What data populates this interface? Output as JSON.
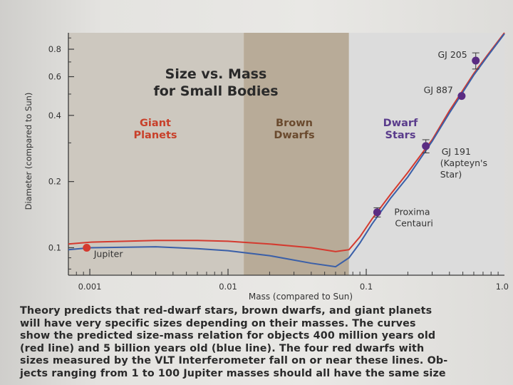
{
  "chart_data": {
    "type": "line",
    "title_lines": [
      "Size vs. Mass",
      "for Small Bodies"
    ],
    "xlabel": "Mass (compared to Sun)",
    "ylabel": "Diameter (compared to Sun)",
    "x_scale": "log",
    "y_scale": "log",
    "xlim": [
      0.0007,
      1.0
    ],
    "ylim": [
      0.075,
      0.95
    ],
    "x_ticks": [
      {
        "value": 0.001,
        "label": "0.001"
      },
      {
        "value": 0.01,
        "label": "0.01"
      },
      {
        "value": 0.1,
        "label": "0.1"
      },
      {
        "value": 1.0,
        "label": "1.0"
      }
    ],
    "y_ticks": [
      {
        "value": 0.1,
        "label": "0.1"
      },
      {
        "value": 0.2,
        "label": "0.2"
      },
      {
        "value": 0.4,
        "label": "0.4"
      },
      {
        "value": 0.6,
        "label": "0.6"
      },
      {
        "value": 0.8,
        "label": "0.8"
      }
    ],
    "regions": [
      {
        "name": "Giant Planets",
        "label_lines": [
          "Giant",
          "Planets"
        ],
        "x_range": [
          0.0007,
          0.013
        ],
        "color": "#cdc8bf",
        "label_color": "#c8402a"
      },
      {
        "name": "Brown Dwarfs",
        "label_lines": [
          "Brown",
          "Dwarfs"
        ],
        "x_range": [
          0.013,
          0.075
        ],
        "color": "#b8ab98",
        "label_color": "#6a4a2e"
      },
      {
        "name": "Dwarf Stars",
        "label_lines": [
          "Dwarf",
          "Stars"
        ],
        "x_range": [
          0.075,
          1.0
        ],
        "color": "#dcdcdc",
        "label_color": "#5a3c8c"
      }
    ],
    "series": [
      {
        "name": "400 million years old",
        "color": "#d43a2f",
        "points": [
          [
            0.0007,
            0.104
          ],
          [
            0.001,
            0.106
          ],
          [
            0.003,
            0.108
          ],
          [
            0.006,
            0.108
          ],
          [
            0.01,
            0.107
          ],
          [
            0.02,
            0.104
          ],
          [
            0.04,
            0.1
          ],
          [
            0.06,
            0.096
          ],
          [
            0.075,
            0.098
          ],
          [
            0.09,
            0.112
          ],
          [
            0.11,
            0.135
          ],
          [
            0.15,
            0.175
          ],
          [
            0.2,
            0.22
          ],
          [
            0.3,
            0.31
          ],
          [
            0.4,
            0.42
          ],
          [
            0.5,
            0.52
          ],
          [
            0.6,
            0.62
          ],
          [
            0.75,
            0.75
          ],
          [
            1.0,
            0.95
          ]
        ]
      },
      {
        "name": "5 billion years old",
        "color": "#3a5fa8",
        "points": [
          [
            0.0007,
            0.098
          ],
          [
            0.001,
            0.1
          ],
          [
            0.003,
            0.101
          ],
          [
            0.006,
            0.099
          ],
          [
            0.01,
            0.097
          ],
          [
            0.02,
            0.092
          ],
          [
            0.04,
            0.085
          ],
          [
            0.06,
            0.082
          ],
          [
            0.075,
            0.09
          ],
          [
            0.09,
            0.105
          ],
          [
            0.11,
            0.128
          ],
          [
            0.15,
            0.168
          ],
          [
            0.2,
            0.21
          ],
          [
            0.3,
            0.305
          ],
          [
            0.4,
            0.41
          ],
          [
            0.5,
            0.51
          ],
          [
            0.6,
            0.61
          ],
          [
            0.75,
            0.74
          ],
          [
            1.0,
            0.94
          ]
        ]
      }
    ],
    "points": [
      {
        "label_lines": [
          "Jupiter"
        ],
        "x": 0.00095,
        "y": 0.1,
        "err": 0,
        "color": "#d43a2f",
        "label_side": "below-right"
      },
      {
        "label_lines": [
          "Proxima",
          "Centauri"
        ],
        "x": 0.12,
        "y": 0.145,
        "err": 0.007,
        "color": "#5a2c82",
        "label_side": "right"
      },
      {
        "label_lines": [
          "GJ 191",
          "(Kapteyn's",
          "Star)"
        ],
        "x": 0.27,
        "y": 0.29,
        "err": 0.02,
        "color": "#5a2c82",
        "label_side": "below-right"
      },
      {
        "label_lines": [
          "GJ 887"
        ],
        "x": 0.49,
        "y": 0.49,
        "err": 0,
        "color": "#5a2c82",
        "label_side": "left"
      },
      {
        "label_lines": [
          "GJ 205"
        ],
        "x": 0.62,
        "y": 0.71,
        "err": 0.06,
        "color": "#5a2c82",
        "label_side": "left"
      }
    ]
  },
  "caption": [
    "Theory predicts that red-dwarf stars, brown dwarfs, and giant planets",
    "will have very specific sizes depending on their masses. The curves",
    "show the predicted size-mass relation for objects 400 million years old",
    "(red line) and 5 billion years old (blue line). The four red dwarfs with",
    "sizes measured by the VLT Interferometer fall on or near these lines. Ob-",
    "jects ranging from 1 to 100 Jupiter masses should all have the same size"
  ]
}
